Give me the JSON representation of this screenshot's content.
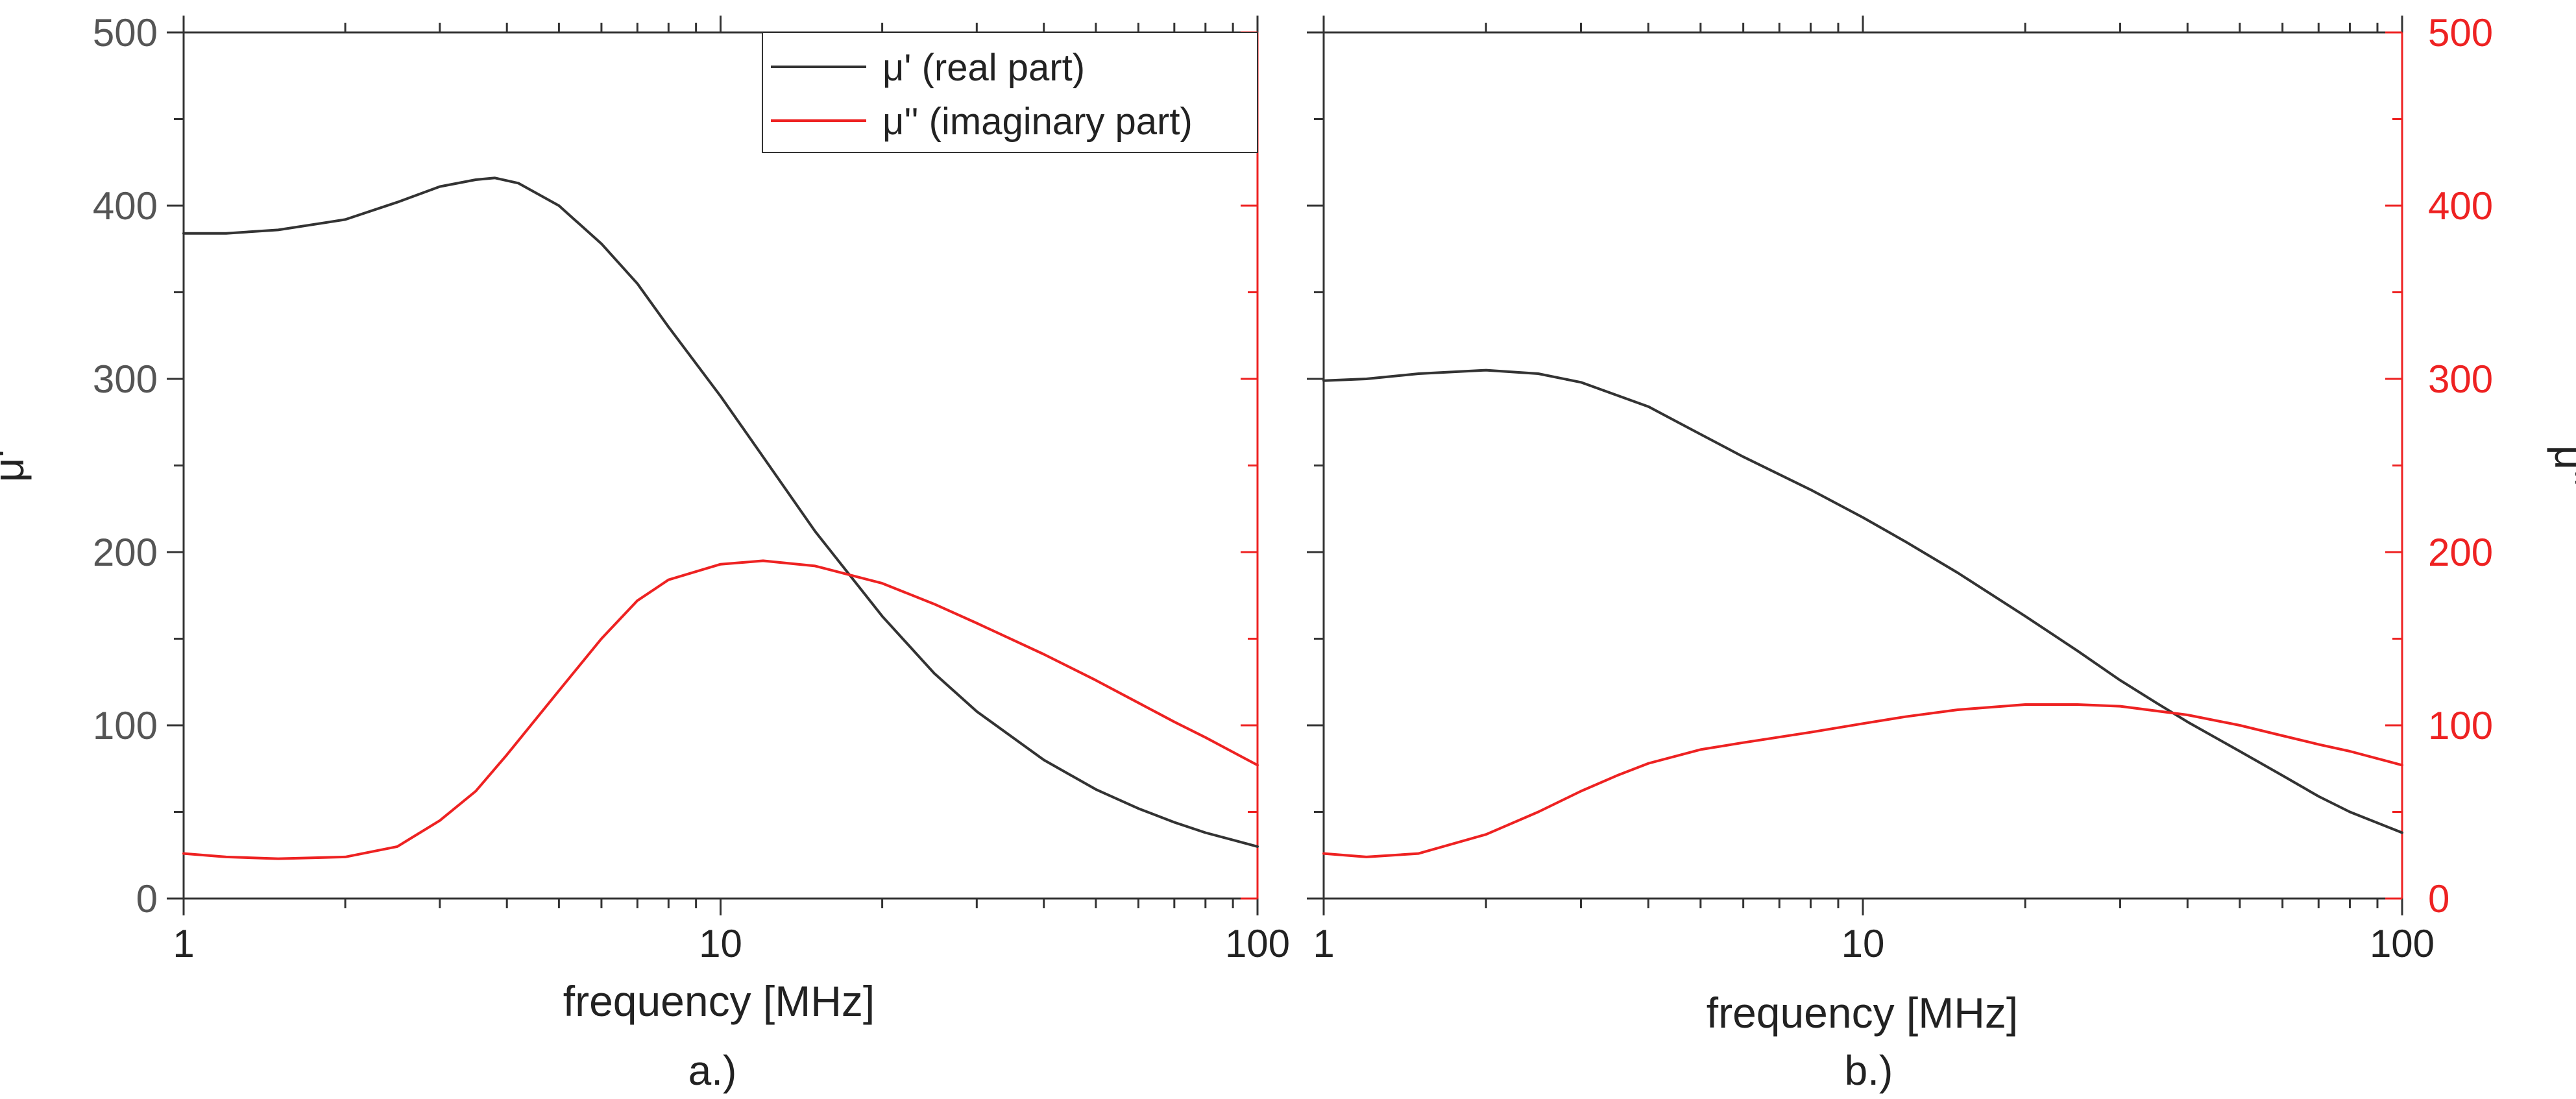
{
  "colors": {
    "real": "#333333",
    "imag": "#ee2222",
    "axis": "#333333",
    "frame": "#333333"
  },
  "chart_data": [
    {
      "type": "line",
      "panel_label": "a.)",
      "xlabel": "frequency [MHz]",
      "x_scale": "log",
      "xlim": [
        1,
        100
      ],
      "x_ticks": [
        1,
        10,
        100
      ],
      "x_tick_labels": [
        "1",
        "10",
        "100"
      ],
      "ylabel_left": "μ'",
      "ylim_left": [
        0,
        500
      ],
      "y_ticks_left": [
        "0",
        "100",
        "200",
        "300",
        "400",
        "500"
      ],
      "legend": [
        "μ' (real part)",
        "μ'' (imaginary part)"
      ],
      "legend_position": "top-right",
      "series": [
        {
          "name": "μ' (real part)",
          "axis": "left",
          "color": "#333333",
          "x": [
            1,
            1.2,
            1.5,
            2,
            2.5,
            3,
            3.5,
            3.8,
            4.2,
            5,
            6,
            7,
            8,
            10,
            12,
            15,
            20,
            25,
            30,
            40,
            50,
            60,
            70,
            80,
            100
          ],
          "values": [
            384,
            384,
            386,
            392,
            402,
            411,
            415,
            416,
            413,
            400,
            378,
            355,
            330,
            290,
            255,
            212,
            163,
            130,
            108,
            80,
            63,
            52,
            44,
            38,
            30
          ]
        },
        {
          "name": "μ'' (imaginary part)",
          "axis": "right",
          "color": "#ee2222",
          "x": [
            1,
            1.2,
            1.5,
            2,
            2.5,
            3,
            3.5,
            4,
            5,
            6,
            7,
            8,
            10,
            12,
            15,
            20,
            25,
            30,
            40,
            50,
            60,
            70,
            80,
            100
          ],
          "values": [
            26,
            24,
            23,
            24,
            30,
            45,
            62,
            83,
            120,
            150,
            172,
            184,
            193,
            195,
            192,
            182,
            170,
            159,
            141,
            126,
            113,
            102,
            93,
            77
          ]
        }
      ]
    },
    {
      "type": "line",
      "panel_label": "b.)",
      "xlabel": "frequency [MHz]",
      "x_scale": "log",
      "xlim": [
        1,
        100
      ],
      "x_ticks": [
        1,
        10,
        100
      ],
      "x_tick_labels": [
        "1",
        "10",
        "100"
      ],
      "ylabel_right": "μ''",
      "ylim_right": [
        0,
        500
      ],
      "y_ticks_right": [
        "0",
        "100",
        "200",
        "300",
        "400",
        "500"
      ],
      "series": [
        {
          "name": "μ' (real part)",
          "axis": "left",
          "color": "#333333",
          "x": [
            1,
            1.2,
            1.5,
            2,
            2.5,
            3,
            4,
            5,
            6,
            8,
            10,
            12,
            15,
            20,
            25,
            30,
            35,
            40,
            50,
            60,
            70,
            80,
            100
          ],
          "values": [
            299,
            300,
            303,
            305,
            303,
            298,
            284,
            268,
            255,
            236,
            220,
            206,
            188,
            163,
            143,
            126,
            113,
            102,
            85,
            71,
            59,
            50,
            38
          ]
        },
        {
          "name": "μ'' (imaginary part)",
          "axis": "right",
          "color": "#ee2222",
          "x": [
            1,
            1.2,
            1.5,
            2,
            2.5,
            3,
            3.5,
            4,
            5,
            6,
            8,
            10,
            12,
            15,
            20,
            25,
            30,
            40,
            50,
            60,
            70,
            80,
            100
          ],
          "values": [
            26,
            24,
            26,
            37,
            50,
            62,
            71,
            78,
            86,
            90,
            96,
            101,
            105,
            109,
            112,
            112,
            111,
            106,
            100,
            94,
            89,
            85,
            77
          ]
        }
      ]
    }
  ]
}
